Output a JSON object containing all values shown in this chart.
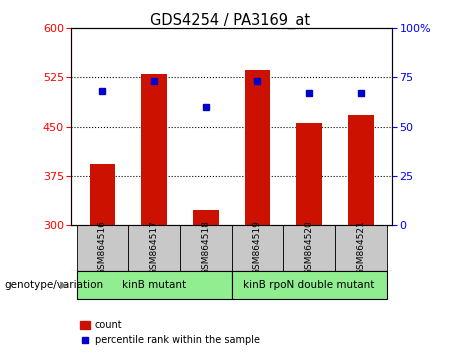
{
  "title": "GDS4254 / PA3169_at",
  "categories": [
    "GSM864516",
    "GSM864517",
    "GSM864518",
    "GSM864519",
    "GSM864520",
    "GSM864521"
  ],
  "bar_values": [
    393,
    530,
    323,
    537,
    455,
    468
  ],
  "percentile_values": [
    68,
    73,
    60,
    73,
    67,
    67
  ],
  "bar_color": "#cc1100",
  "dot_color": "#0000cc",
  "ylim_left": [
    300,
    600
  ],
  "ylim_right": [
    0,
    100
  ],
  "yticks_left": [
    300,
    375,
    450,
    525,
    600
  ],
  "yticks_right": [
    0,
    25,
    50,
    75,
    100
  ],
  "ytick_labels_right": [
    "0",
    "25",
    "50",
    "75",
    "100%"
  ],
  "grid_values": [
    375,
    450,
    525
  ],
  "groups": [
    {
      "label": "kinB mutant",
      "start": 0,
      "end": 3,
      "color": "#90ee90"
    },
    {
      "label": "kinB rpoN double mutant",
      "start": 3,
      "end": 6,
      "color": "#90ee90"
    }
  ],
  "group_label": "genotype/variation",
  "legend_count_label": "count",
  "legend_percentile_label": "percentile rank within the sample",
  "bar_width": 0.5,
  "figsize": [
    4.61,
    3.54
  ],
  "dpi": 100
}
